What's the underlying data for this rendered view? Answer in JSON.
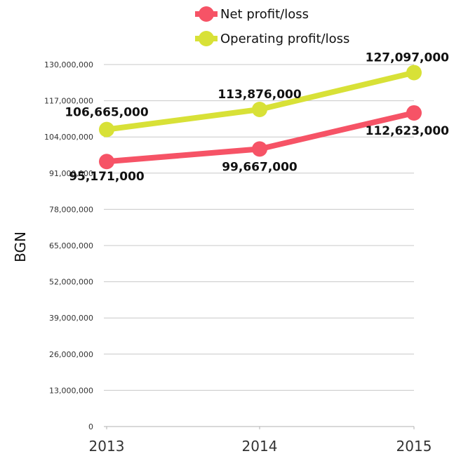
{
  "chart_data": {
    "type": "line",
    "title": "",
    "xlabel": "",
    "ylabel": "BGN",
    "x": [
      "2013",
      "2014",
      "2015"
    ],
    "ylim": [
      0,
      130000000
    ],
    "yticks": [
      0,
      13000000,
      26000000,
      39000000,
      52000000,
      65000000,
      78000000,
      91000000,
      104000000,
      117000000,
      130000000
    ],
    "ytick_labels": [
      "0",
      "13,000,000",
      "26,000,000",
      "39,000,000",
      "52,000,000",
      "65,000,000",
      "78,000,000",
      "91,000,000",
      "104,000,000",
      "117,000,000",
      "130,000,000"
    ],
    "grid": true,
    "legend_position": "top",
    "series": [
      {
        "name": "Net profit/loss",
        "color": "#f65366",
        "values": [
          95171000,
          99667000,
          112623000
        ],
        "labels": [
          "95,171,000",
          "99,667,000",
          "112,623,000"
        ]
      },
      {
        "name": "Operating profit/loss",
        "color": "#d8e137",
        "values": [
          106665000,
          113876000,
          127097000
        ],
        "labels": [
          "106,665,000",
          "113,876,000",
          "127,097,000"
        ]
      }
    ]
  }
}
